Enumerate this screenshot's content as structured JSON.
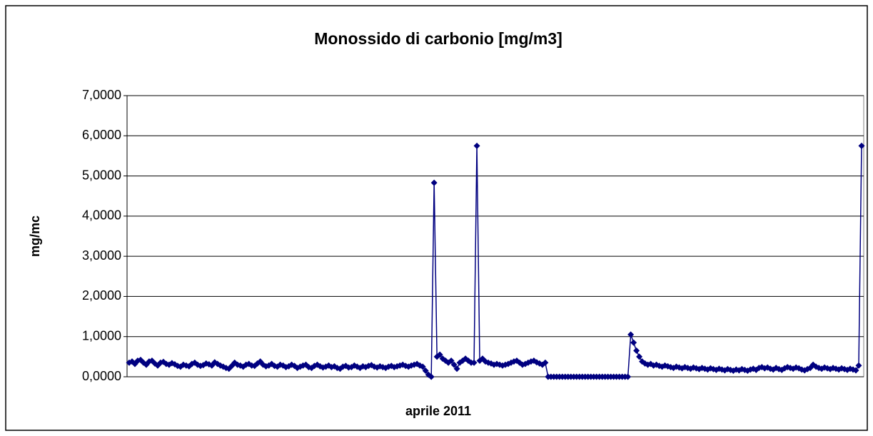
{
  "chart_data": {
    "type": "line",
    "title": "Monossido di carbonio [mg/m3]",
    "xlabel": "aprile 2011",
    "ylabel": "mg/mc",
    "ylim": [
      0,
      7
    ],
    "yticks": [
      {
        "value": 0,
        "label": "0,0000"
      },
      {
        "value": 1,
        "label": "1,0000"
      },
      {
        "value": 2,
        "label": "2,0000"
      },
      {
        "value": 3,
        "label": "3,0000"
      },
      {
        "value": 4,
        "label": "4,0000"
      },
      {
        "value": 5,
        "label": "5,0000"
      },
      {
        "value": 6,
        "label": "6,0000"
      },
      {
        "value": 7,
        "label": "7,0000"
      }
    ],
    "grid": true,
    "color": "#000080",
    "values": [
      0.35,
      0.38,
      0.32,
      0.4,
      0.42,
      0.35,
      0.3,
      0.38,
      0.4,
      0.33,
      0.28,
      0.35,
      0.37,
      0.32,
      0.3,
      0.34,
      0.31,
      0.27,
      0.25,
      0.3,
      0.28,
      0.26,
      0.32,
      0.35,
      0.3,
      0.27,
      0.29,
      0.33,
      0.31,
      0.28,
      0.36,
      0.32,
      0.28,
      0.25,
      0.22,
      0.2,
      0.27,
      0.35,
      0.3,
      0.28,
      0.25,
      0.3,
      0.32,
      0.28,
      0.27,
      0.33,
      0.38,
      0.3,
      0.26,
      0.28,
      0.32,
      0.27,
      0.25,
      0.3,
      0.28,
      0.24,
      0.26,
      0.3,
      0.27,
      0.22,
      0.25,
      0.28,
      0.3,
      0.24,
      0.22,
      0.27,
      0.3,
      0.26,
      0.23,
      0.25,
      0.28,
      0.24,
      0.26,
      0.22,
      0.2,
      0.25,
      0.27,
      0.23,
      0.24,
      0.28,
      0.25,
      0.22,
      0.26,
      0.24,
      0.27,
      0.29,
      0.25,
      0.23,
      0.26,
      0.24,
      0.22,
      0.25,
      0.27,
      0.24,
      0.26,
      0.28,
      0.3,
      0.27,
      0.25,
      0.28,
      0.3,
      0.32,
      0.28,
      0.25,
      0.15,
      0.05,
      0.0,
      4.83,
      0.5,
      0.55,
      0.45,
      0.4,
      0.35,
      0.4,
      0.3,
      0.2,
      0.35,
      0.4,
      0.45,
      0.4,
      0.35,
      0.35,
      5.75,
      0.4,
      0.45,
      0.38,
      0.35,
      0.33,
      0.3,
      0.32,
      0.3,
      0.28,
      0.3,
      0.32,
      0.35,
      0.38,
      0.4,
      0.35,
      0.3,
      0.32,
      0.35,
      0.38,
      0.4,
      0.36,
      0.33,
      0.3,
      0.35,
      0,
      0,
      0,
      0,
      0,
      0,
      0,
      0,
      0,
      0,
      0,
      0,
      0,
      0,
      0,
      0,
      0,
      0,
      0,
      0,
      0,
      0,
      0,
      0,
      0,
      0,
      0,
      0,
      0,
      1.05,
      0.85,
      0.65,
      0.5,
      0.38,
      0.33,
      0.3,
      0.32,
      0.28,
      0.3,
      0.27,
      0.25,
      0.28,
      0.26,
      0.24,
      0.22,
      0.25,
      0.23,
      0.21,
      0.24,
      0.22,
      0.2,
      0.23,
      0.21,
      0.19,
      0.22,
      0.2,
      0.18,
      0.21,
      0.19,
      0.17,
      0.2,
      0.18,
      0.16,
      0.19,
      0.17,
      0.15,
      0.18,
      0.16,
      0.19,
      0.17,
      0.15,
      0.18,
      0.2,
      0.17,
      0.22,
      0.24,
      0.21,
      0.23,
      0.2,
      0.18,
      0.22,
      0.19,
      0.17,
      0.21,
      0.24,
      0.22,
      0.2,
      0.23,
      0.21,
      0.18,
      0.16,
      0.19,
      0.22,
      0.3,
      0.25,
      0.22,
      0.2,
      0.23,
      0.21,
      0.19,
      0.22,
      0.2,
      0.18,
      0.21,
      0.19,
      0.17,
      0.2,
      0.18,
      0.16,
      0.28,
      5.75
    ]
  }
}
